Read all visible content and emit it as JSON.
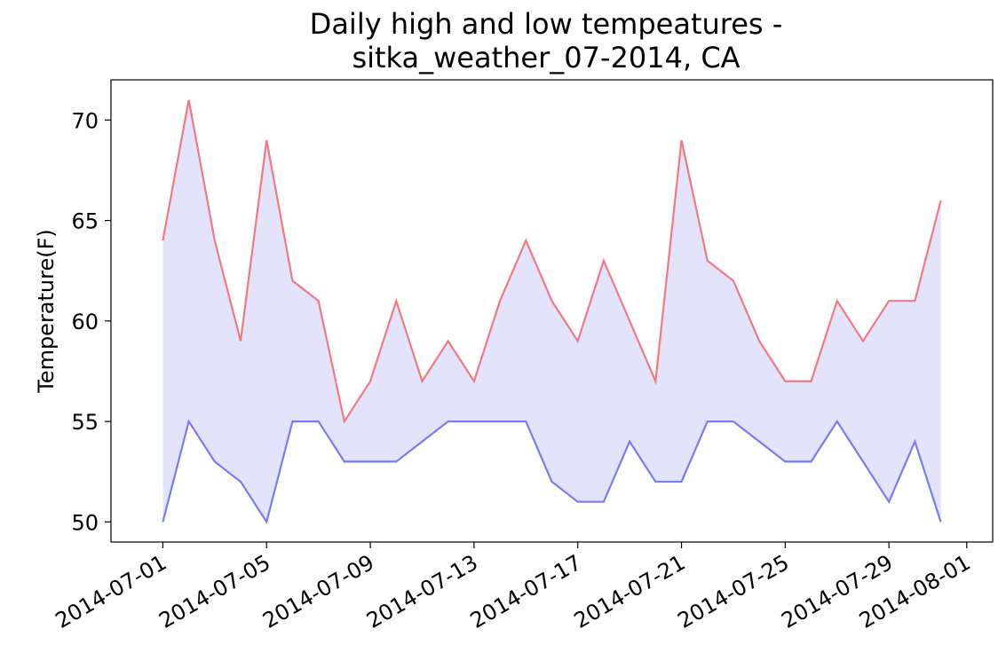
{
  "chart_data": {
    "type": "line",
    "title_line1": "Daily high and low tempeatures -",
    "title_line2": "sitka_weather_07-2014, CA",
    "xlabel": "",
    "ylabel": "Temperature(F)",
    "ylim": [
      49,
      72
    ],
    "xlim": [
      "2014-06-29",
      "2014-08-02"
    ],
    "yticks": [
      50,
      55,
      60,
      65,
      70
    ],
    "xticks": [
      "2014-07-01",
      "2014-07-05",
      "2014-07-09",
      "2014-07-13",
      "2014-07-17",
      "2014-07-21",
      "2014-07-25",
      "2014-07-29",
      "2014-08-01"
    ],
    "x": [
      "2014-07-01",
      "2014-07-02",
      "2014-07-03",
      "2014-07-04",
      "2014-07-05",
      "2014-07-06",
      "2014-07-07",
      "2014-07-08",
      "2014-07-09",
      "2014-07-10",
      "2014-07-11",
      "2014-07-12",
      "2014-07-13",
      "2014-07-14",
      "2014-07-15",
      "2014-07-16",
      "2014-07-17",
      "2014-07-18",
      "2014-07-19",
      "2014-07-20",
      "2014-07-21",
      "2014-07-22",
      "2014-07-23",
      "2014-07-24",
      "2014-07-25",
      "2014-07-26",
      "2014-07-27",
      "2014-07-28",
      "2014-07-29",
      "2014-07-30",
      "2014-07-31"
    ],
    "series": [
      {
        "color": "#f07a80",
        "values": [
          64,
          71,
          64,
          59,
          69,
          62,
          61,
          55,
          57,
          61,
          57,
          59,
          57,
          61,
          64,
          61,
          59,
          63,
          60,
          57,
          69,
          63,
          62,
          59,
          57,
          57,
          61,
          59,
          61,
          61,
          66
        ]
      },
      {
        "color": "#7a7af5",
        "values": [
          50,
          55,
          53,
          52,
          50,
          55,
          55,
          53,
          53,
          53,
          54,
          55,
          55,
          55,
          55,
          52,
          51,
          51,
          54,
          52,
          52,
          55,
          55,
          54,
          53,
          53,
          55,
          53,
          51,
          54,
          50
        ]
      }
    ],
    "fill_color": "#e3e3fc",
    "grid": false
  }
}
